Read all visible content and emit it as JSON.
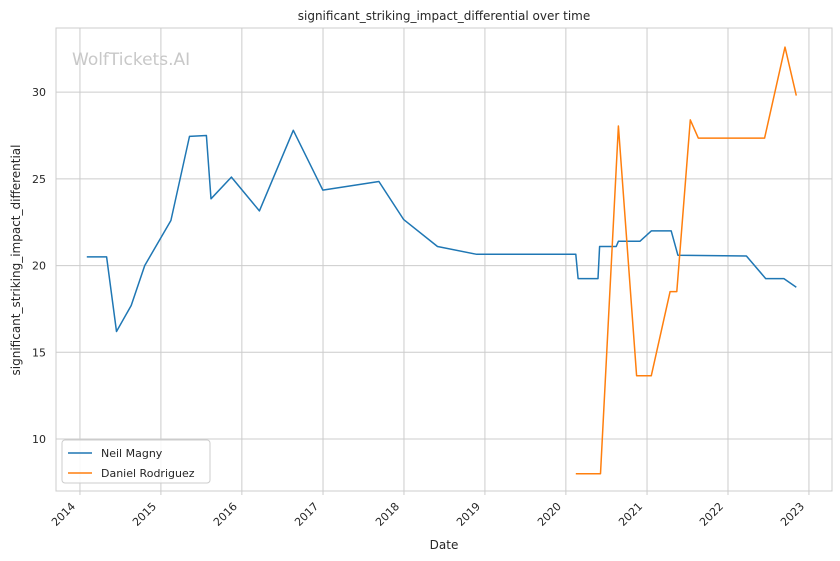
{
  "chart_data": {
    "type": "line",
    "title": "significant_striking_impact_differential over time",
    "xlabel": "Date",
    "ylabel": "significant_striking_impact_differential",
    "watermark": "WolfTickets.AI",
    "x_ticks": [
      "2014",
      "2015",
      "2016",
      "2017",
      "2018",
      "2019",
      "2020",
      "2021",
      "2022",
      "2023"
    ],
    "y_ticks": [
      10,
      15,
      20,
      25,
      30
    ],
    "xlim": [
      "2013-09-15",
      "2023-04-15"
    ],
    "ylim": [
      7.0,
      33.7
    ],
    "grid": true,
    "legend_position": "lower-left",
    "series": [
      {
        "name": "Neil Magny",
        "color": "#1f77b4",
        "points": [
          [
            "2014-02-01",
            20.5
          ],
          [
            "2014-05-01",
            20.5
          ],
          [
            "2014-06-15",
            16.2
          ],
          [
            "2014-08-20",
            17.7
          ],
          [
            "2014-10-20",
            20.0
          ],
          [
            "2015-02-15",
            22.6
          ],
          [
            "2015-05-10",
            27.45
          ],
          [
            "2015-07-25",
            27.5
          ],
          [
            "2015-08-15",
            23.85
          ],
          [
            "2015-11-15",
            25.1
          ],
          [
            "2016-03-20",
            23.15
          ],
          [
            "2016-08-20",
            27.8
          ],
          [
            "2016-12-31",
            24.35
          ],
          [
            "2017-09-10",
            24.85
          ],
          [
            "2017-12-31",
            22.65
          ],
          [
            "2018-06-01",
            21.1
          ],
          [
            "2018-11-25",
            20.65
          ],
          [
            "2020-02-15",
            20.65
          ],
          [
            "2020-02-25",
            19.25
          ],
          [
            "2020-05-25",
            19.25
          ],
          [
            "2020-06-01",
            21.1
          ],
          [
            "2020-08-15",
            21.1
          ],
          [
            "2020-08-25",
            21.4
          ],
          [
            "2020-11-30",
            21.4
          ],
          [
            "2021-01-20",
            22.0
          ],
          [
            "2021-04-20",
            22.0
          ],
          [
            "2021-05-20",
            20.6
          ],
          [
            "2022-03-25",
            20.55
          ],
          [
            "2022-06-20",
            19.25
          ],
          [
            "2022-09-10",
            19.25
          ],
          [
            "2022-11-05",
            18.75
          ]
        ]
      },
      {
        "name": "Daniel Rodriguez",
        "color": "#ff7f0e",
        "points": [
          [
            "2020-02-15",
            8.0
          ],
          [
            "2020-06-05",
            8.0
          ],
          [
            "2020-08-25",
            28.05
          ],
          [
            "2020-11-15",
            13.65
          ],
          [
            "2021-01-20",
            13.65
          ],
          [
            "2021-04-15",
            18.5
          ],
          [
            "2021-05-15",
            18.5
          ],
          [
            "2021-07-15",
            28.4
          ],
          [
            "2021-08-20",
            27.35
          ],
          [
            "2022-06-15",
            27.35
          ],
          [
            "2022-09-15",
            32.6
          ],
          [
            "2022-11-05",
            29.8
          ]
        ]
      }
    ]
  }
}
